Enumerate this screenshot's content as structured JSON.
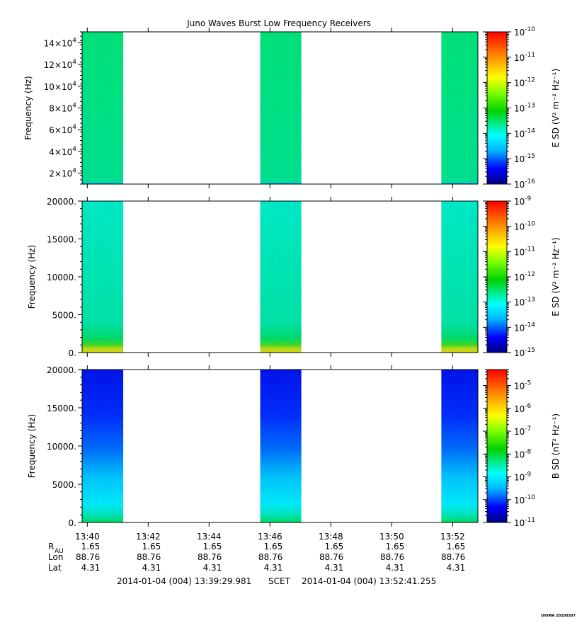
{
  "chart_data": {
    "title": "Juno Waves Burst Low Frequency Receivers",
    "type": "heatmap",
    "time_ticks": [
      "13:40",
      "13:42",
      "13:44",
      "13:46",
      "13:48",
      "13:50",
      "13:52"
    ],
    "time_range_minutes": [
      13.5,
      26.5
    ],
    "tick_minutes": [
      13.67,
      15.67,
      17.67,
      19.67,
      21.67,
      23.67,
      25.67
    ],
    "data_blocks_minutes": [
      [
        13.5,
        14.85
      ],
      [
        19.35,
        20.7
      ],
      [
        25.3,
        26.55
      ]
    ],
    "panels": [
      {
        "name": "panel-1",
        "ylabel": "Frequency (Hz)",
        "yrange": [
          10000,
          150000
        ],
        "yticks": [
          {
            "value": 20000,
            "mant": "2×10",
            "exp": "4"
          },
          {
            "value": 40000,
            "mant": "4×10",
            "exp": "4"
          },
          {
            "value": 60000,
            "mant": "6×10",
            "exp": "4"
          },
          {
            "value": 80000,
            "mant": "8×10",
            "exp": "4"
          },
          {
            "value": 100000,
            "mant": "10×10",
            "exp": "4"
          },
          {
            "value": 120000,
            "mant": "12×10",
            "exp": "4"
          },
          {
            "value": 140000,
            "mant": "14×10",
            "exp": "4"
          }
        ],
        "colorbar_label": "E SD (V² m⁻² Hz⁻¹)",
        "colorbar_exp_range": [
          -16,
          -10
        ],
        "colorbar_ticks": [
          "-10",
          "-11",
          "-12",
          "-13",
          "-14",
          "-15",
          "-16"
        ],
        "intensity_profile": "uniform-green"
      },
      {
        "name": "panel-2",
        "ylabel": "Frequency (Hz)",
        "yrange": [
          0,
          20000
        ],
        "yticks": [
          {
            "value": 0,
            "label": "0."
          },
          {
            "value": 5000,
            "label": "5000."
          },
          {
            "value": 10000,
            "label": "10000."
          },
          {
            "value": 15000,
            "label": "15000."
          },
          {
            "value": 20000,
            "label": "20000."
          }
        ],
        "colorbar_label": "E SD (V² m⁻² Hz⁻¹)",
        "colorbar_exp_range": [
          -15,
          -9
        ],
        "colorbar_ticks": [
          "-9",
          "-10",
          "-11",
          "-12",
          "-13",
          "-14",
          "-15"
        ],
        "intensity_profile": "cyan-green-with-yellow-low-band"
      },
      {
        "name": "panel-3",
        "ylabel": "Frequency (Hz)",
        "yrange": [
          0,
          20000
        ],
        "yticks": [
          {
            "value": 0,
            "label": "0."
          },
          {
            "value": 5000,
            "label": "5000."
          },
          {
            "value": 10000,
            "label": "10000."
          },
          {
            "value": 15000,
            "label": "15000."
          },
          {
            "value": 20000,
            "label": "20000."
          }
        ],
        "colorbar_label": "B SD (nT² Hz⁻¹)",
        "colorbar_exp_range": [
          -11,
          -4.3
        ],
        "colorbar_ticks": [
          "-5",
          "-6",
          "-7",
          "-8",
          "-9",
          "-10",
          "-11"
        ],
        "intensity_profile": "blue-high-cyan-low-green-bottom"
      }
    ],
    "ephemeris": {
      "rows": [
        {
          "label": "R",
          "sub": "AU",
          "values": [
            "1.65",
            "1.65",
            "1.65",
            "1.65",
            "1.65",
            "1.65",
            "1.65"
          ]
        },
        {
          "label": "Lon",
          "sub": "",
          "values": [
            "88.76",
            "88.76",
            "88.76",
            "88.76",
            "88.76",
            "88.76",
            "88.76"
          ]
        },
        {
          "label": "Lat",
          "sub": "",
          "values": [
            "4.31",
            "4.31",
            "4.31",
            "4.31",
            "4.31",
            "4.31",
            "4.31"
          ]
        }
      ]
    },
    "time_span": {
      "start": "2014-01-04 (004) 13:39:29.981",
      "frame": "SCET",
      "end": "2014-01-04 (004) 13:52:41.255"
    },
    "footer": "UIOWA 20200307"
  }
}
